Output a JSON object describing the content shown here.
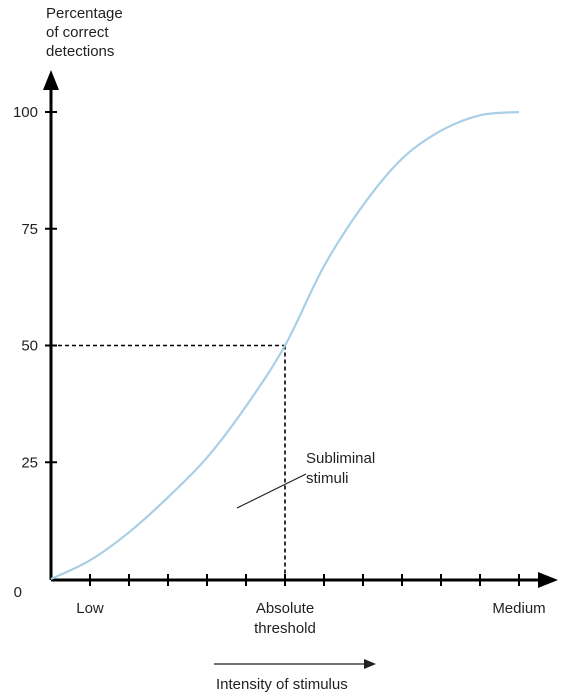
{
  "chart_data": {
    "type": "line",
    "ylabel_lines": [
      "Percentage",
      "of correct",
      "detections"
    ],
    "xlabel": "Intensity of stimulus",
    "yticks": [
      0,
      25,
      50,
      75,
      100
    ],
    "ylim": [
      0,
      100
    ],
    "xlim": [
      0,
      12
    ],
    "x_minor_ticks": 12,
    "x_tick_labels": [
      {
        "x": 1,
        "lines": [
          "Low"
        ]
      },
      {
        "x": 6,
        "lines": [
          "Absolute",
          "threshold"
        ]
      },
      {
        "x": 12,
        "lines": [
          "Medium"
        ]
      }
    ],
    "series": [
      {
        "color": "#a9cfe6",
        "x": [
          0,
          1,
          2,
          3,
          4,
          5,
          6,
          7,
          8,
          9,
          10,
          11,
          12
        ],
        "y": [
          0,
          4,
          10,
          17.5,
          26,
          37,
          50,
          67,
          80,
          90,
          96,
          99.3,
          100
        ]
      }
    ],
    "threshold": {
      "x": 6,
      "y": 50
    },
    "annotation": {
      "lines": [
        "Subliminal",
        "stimuli"
      ]
    },
    "grid": false,
    "background": "#ffffff",
    "axis_color": "#000000"
  }
}
